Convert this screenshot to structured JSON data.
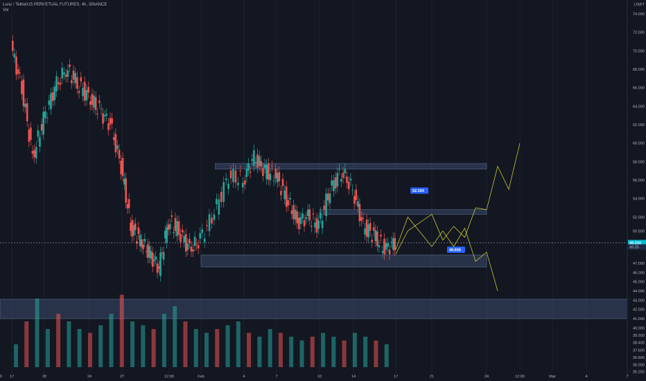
{
  "header": {
    "symbol_line": "Luna / TetherUS PERPETUAL FUTURES, 4h, BINANCE",
    "indicator": "Vol"
  },
  "price_axis": {
    "currency": "USDT",
    "ticks": [
      "74.000",
      "72.000",
      "70.000",
      "68.000",
      "66.000",
      "64.000",
      "62.000",
      "60.000",
      "58.000",
      "56.000",
      "54.000",
      "52.000",
      "50.500",
      "49.000",
      "47.000",
      "46.000",
      "45.000",
      "44.000",
      "43.000",
      "42.000",
      "41.000",
      "40.000",
      "39.200",
      "38.400",
      "37.600",
      "36.800",
      "36.000",
      "35.250"
    ],
    "current_price": "49.224",
    "secondary_price": "49.35"
  },
  "time_axis": {
    "ticks": [
      "17",
      "20",
      "24",
      "27",
      "12:00",
      "Feb",
      "4",
      "7",
      "10",
      "14",
      "17",
      "21",
      "24",
      "12:00",
      "Mar",
      "4",
      "7",
      "10"
    ]
  },
  "annotations": {
    "upper_label": "52.324",
    "lower_label": "49.800"
  },
  "colors": {
    "background": "#131722",
    "bull": "#26a69a",
    "bear": "#ef5350",
    "zone_fill": "#3b4a6b",
    "projection": "#c8c830",
    "label_bg": "#2962ff",
    "price_badge": "#00bcd4"
  },
  "chart_data": {
    "type": "candlestick",
    "symbol": "Luna / TetherUS PERPETUAL FUTURES",
    "timeframe": "4h",
    "exchange": "BINANCE",
    "y_unit": "USDT",
    "ylim": [
      35.0,
      75.5
    ],
    "price_close_path": [
      {
        "date": "Jan 17",
        "close": 70.5
      },
      {
        "date": "Jan 18",
        "close": 66.0
      },
      {
        "date": "Jan 19",
        "close": 58.5
      },
      {
        "date": "Jan 20",
        "close": 62.5
      },
      {
        "date": "Jan 21",
        "close": 66.0
      },
      {
        "date": "Jan 22",
        "close": 68.0
      },
      {
        "date": "Jan 23",
        "close": 66.5
      },
      {
        "date": "Jan 24",
        "close": 65.0
      },
      {
        "date": "Jan 25",
        "close": 63.5
      },
      {
        "date": "Jan 26",
        "close": 62.0
      },
      {
        "date": "Jan 27",
        "close": 57.5
      },
      {
        "date": "Jan 28",
        "close": 51.0
      },
      {
        "date": "Jan 29",
        "close": 49.5
      },
      {
        "date": "Jan 30",
        "close": 48.0
      },
      {
        "date": "Jan 31",
        "close": 46.5
      },
      {
        "date": "Feb 1",
        "close": 51.5
      },
      {
        "date": "Feb 2",
        "close": 50.5
      },
      {
        "date": "Feb 3",
        "close": 48.5
      },
      {
        "date": "Feb 4",
        "close": 49.5
      },
      {
        "date": "Feb 5",
        "close": 52.5
      },
      {
        "date": "Feb 6",
        "close": 56.5
      },
      {
        "date": "Feb 7",
        "close": 56.0
      },
      {
        "date": "Feb 8",
        "close": 58.5
      },
      {
        "date": "Feb 9",
        "close": 57.0
      },
      {
        "date": "Feb 10",
        "close": 56.5
      },
      {
        "date": "Feb 11",
        "close": 54.0
      },
      {
        "date": "Feb 12",
        "close": 51.5
      },
      {
        "date": "Feb 13",
        "close": 52.0
      },
      {
        "date": "Feb 14",
        "close": 51.0
      },
      {
        "date": "Feb 15",
        "close": 55.0
      },
      {
        "date": "Feb 16",
        "close": 57.0
      },
      {
        "date": "Feb 17",
        "close": 55.0
      },
      {
        "date": "Feb 18",
        "close": 51.0
      },
      {
        "date": "Feb 19",
        "close": 50.0
      },
      {
        "date": "Feb 20",
        "close": 48.5
      },
      {
        "date": "Feb 21",
        "close": 49.224
      }
    ],
    "zones": [
      {
        "from": "Feb 5",
        "to": "Mar 1",
        "top": 57.8,
        "bottom": 57.2
      },
      {
        "from": "Feb 14",
        "to": "Mar 1",
        "top": 52.8,
        "bottom": 52.3
      },
      {
        "from": "Feb 4",
        "to": "Mar 1",
        "top": 47.9,
        "bottom": 46.6
      },
      {
        "from": "Jan 17",
        "to": "Mar 11",
        "top": 43.1,
        "bottom": 41.0
      }
    ],
    "projection_up": [
      {
        "date": "Feb 21",
        "price": 48.0
      },
      {
        "date": "Feb 22",
        "price": 50.5
      },
      {
        "date": "Feb 24",
        "price": 52.3
      },
      {
        "date": "Feb 25",
        "price": 49.5
      },
      {
        "date": "Feb 26",
        "price": 51.0
      },
      {
        "date": "Feb 27",
        "price": 49.8
      },
      {
        "date": "Feb 28",
        "price": 53.0
      },
      {
        "date": "Mar 1",
        "price": 52.8
      },
      {
        "date": "Mar 2",
        "price": 57.5
      },
      {
        "date": "Mar 3",
        "price": 55.0
      },
      {
        "date": "Mar 4",
        "price": 60.0
      }
    ],
    "projection_down": [
      {
        "date": "Feb 21",
        "price": 48.5
      },
      {
        "date": "Feb 22",
        "price": 52.0
      },
      {
        "date": "Feb 24",
        "price": 48.8
      },
      {
        "date": "Feb 25",
        "price": 50.5
      },
      {
        "date": "Feb 26",
        "price": 48.8
      },
      {
        "date": "Feb 27",
        "price": 50.8
      },
      {
        "date": "Feb 28",
        "price": 47.2
      },
      {
        "date": "Mar 1",
        "price": 48.2
      },
      {
        "date": "Mar 2",
        "price": 44.0
      }
    ],
    "volume_relative": [
      0.3,
      0.6,
      0.9,
      0.5,
      0.7,
      0.6,
      0.5,
      0.45,
      0.55,
      0.7,
      0.95,
      0.6,
      0.55,
      0.5,
      0.7,
      0.8,
      0.6,
      0.5,
      0.45,
      0.5,
      0.55,
      0.6,
      0.45,
      0.4,
      0.5,
      0.45,
      0.4,
      0.35,
      0.4,
      0.45,
      0.4,
      0.35,
      0.45,
      0.4,
      0.35,
      0.3
    ]
  }
}
